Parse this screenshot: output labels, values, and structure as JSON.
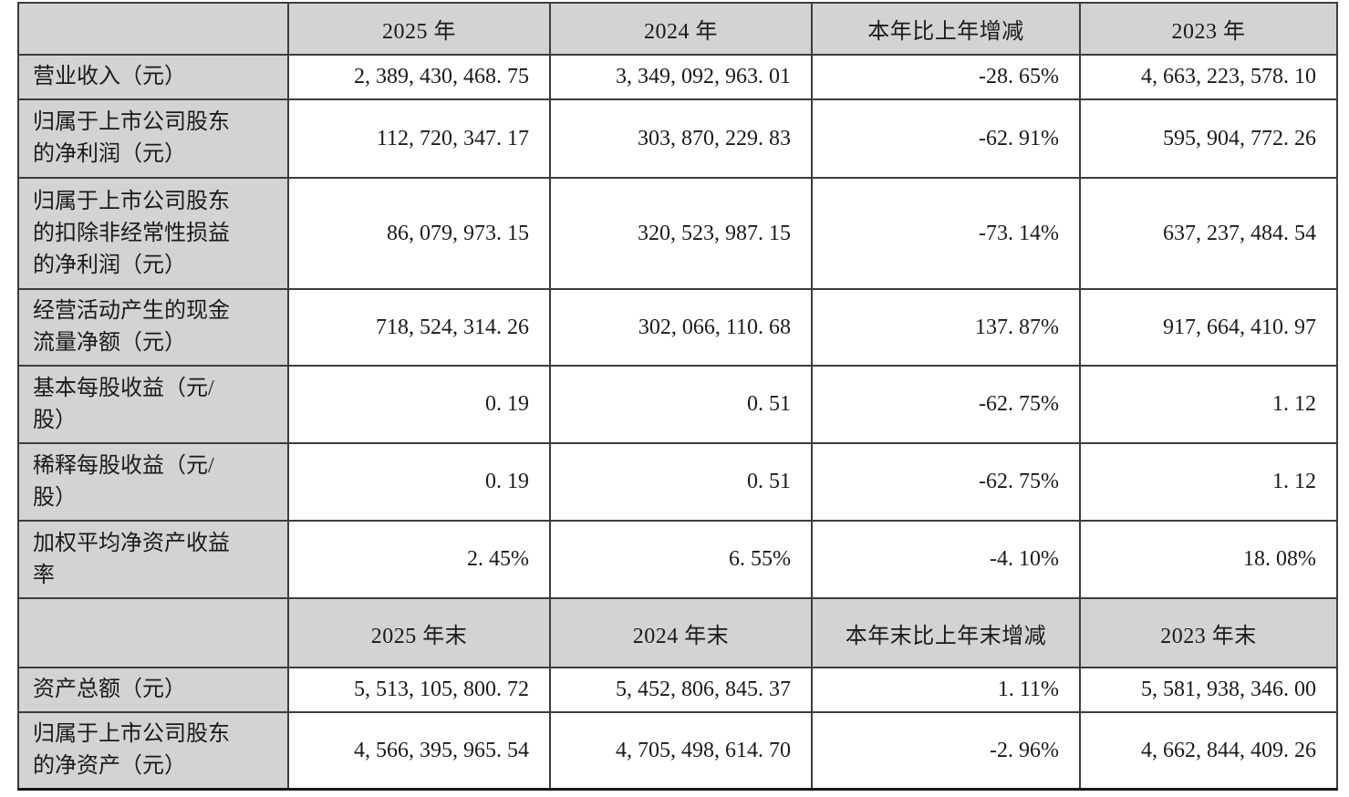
{
  "document": {
    "type": "financial-summary-table",
    "language": "zh-CN"
  },
  "colors": {
    "header_bg": "#d3d3d3",
    "label_column_bg": "#d3d3d3",
    "cell_bg": "#ffffff",
    "border": "#3c3c3c",
    "text": "#1a1a1a"
  },
  "table": {
    "columns_annual": {
      "corner": "",
      "y2025": "2025 年",
      "y2024": "2024 年",
      "change": "本年比上年增减",
      "y2023": "2023 年"
    },
    "annual_rows": [
      {
        "label": "营业收入（元）",
        "values": [
          "2,389,430,468.75",
          "3,349,092,963.01",
          "-28.65%",
          "4,663,223,578.10"
        ]
      },
      {
        "label": "归属于上市公司股东的净利润（元）",
        "values": [
          "112,720,347.17",
          "303,870,229.83",
          "-62.91%",
          "595,904,772.26"
        ]
      },
      {
        "label": "归属于上市公司股东的扣除非经常性损益的净利润（元）",
        "values": [
          "86,079,973.15",
          "320,523,987.15",
          "-73.14%",
          "637,237,484.54"
        ]
      },
      {
        "label": "经营活动产生的现金流量净额（元）",
        "values": [
          "718,524,314.26",
          "302,066,110.68",
          "137.87%",
          "917,664,410.97"
        ]
      },
      {
        "label": "基本每股收益（元/股）",
        "values": [
          "0.19",
          "0.51",
          "-62.75%",
          "1.12"
        ]
      },
      {
        "label": "稀释每股收益（元/股）",
        "values": [
          "0.19",
          "0.51",
          "-62.75%",
          "1.12"
        ]
      },
      {
        "label": "加权平均净资产收益率",
        "values": [
          "2.45%",
          "6.55%",
          "-4.10%",
          "18.08%"
        ]
      }
    ],
    "columns_period_end": {
      "corner": "",
      "y2025": "2025 年末",
      "y2024": "2024 年末",
      "change": "本年末比上年末增减",
      "y2023": "2023 年末"
    },
    "period_end_rows": [
      {
        "label": "资产总额（元）",
        "values": [
          "5,513,105,800.72",
          "5,452,806,845.37",
          "1.11%",
          "5,581,938,346.00"
        ]
      },
      {
        "label": "归属于上市公司股东的净资产（元）",
        "values": [
          "4,566,395,965.54",
          "4,705,498,614.70",
          "-2.96%",
          "4,662,844,409.26"
        ]
      }
    ]
  }
}
